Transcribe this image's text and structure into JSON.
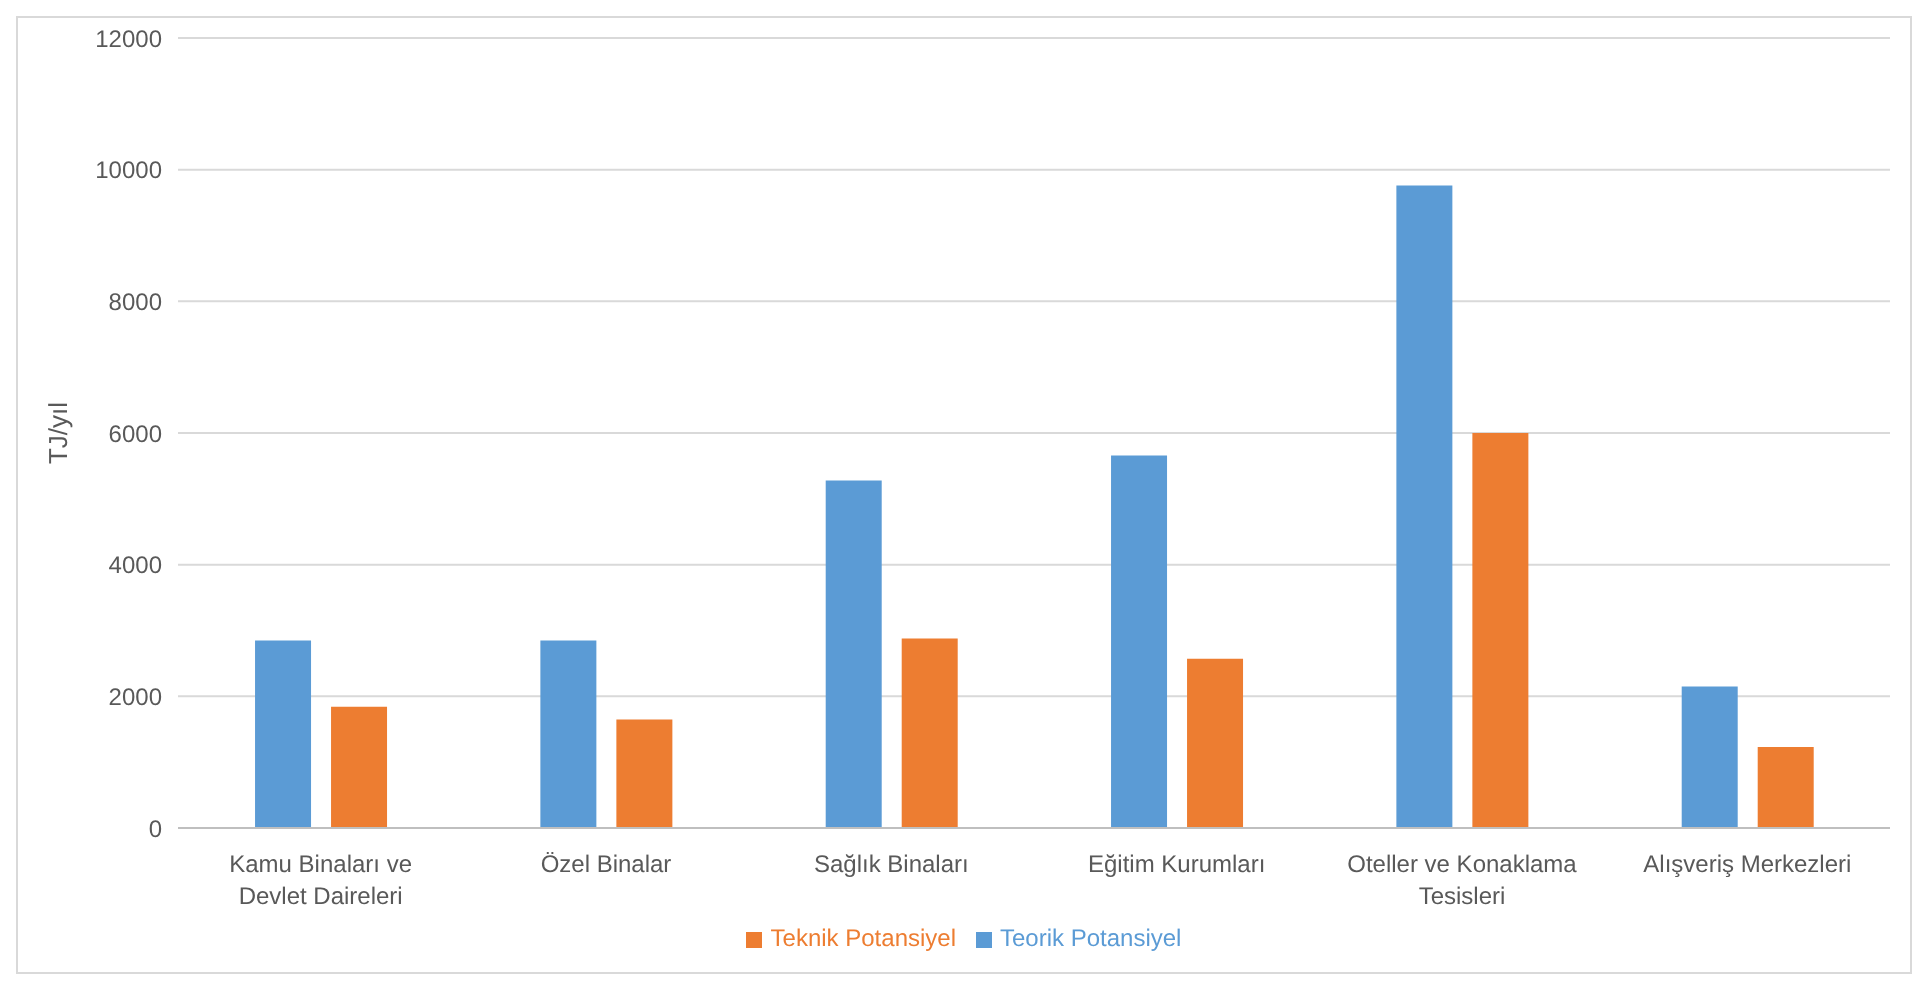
{
  "chart_data": {
    "type": "bar",
    "ylabel": "TJ/yıl",
    "categories": [
      "Kamu Binaları ve Devlet Daireleri",
      "Özel Binalar",
      "Sağlık Binaları",
      "Eğitim Kurumları",
      "Oteller ve Konaklama Tesisleri",
      "Alışveriş Merkezleri"
    ],
    "series": [
      {
        "name": "Teorik Potansiyel",
        "color": "#5b9bd5",
        "values": [
          2850,
          2850,
          5280,
          5660,
          9760,
          2150
        ]
      },
      {
        "name": "Teknik Potansiyel",
        "color": "#ed7d31",
        "values": [
          1840,
          1650,
          2880,
          2570,
          6000,
          1230
        ]
      }
    ],
    "ylim": [
      0,
      12000
    ],
    "yticks": [
      0,
      2000,
      4000,
      6000,
      8000,
      10000,
      12000
    ],
    "grid": "y",
    "legend": "bottom"
  }
}
